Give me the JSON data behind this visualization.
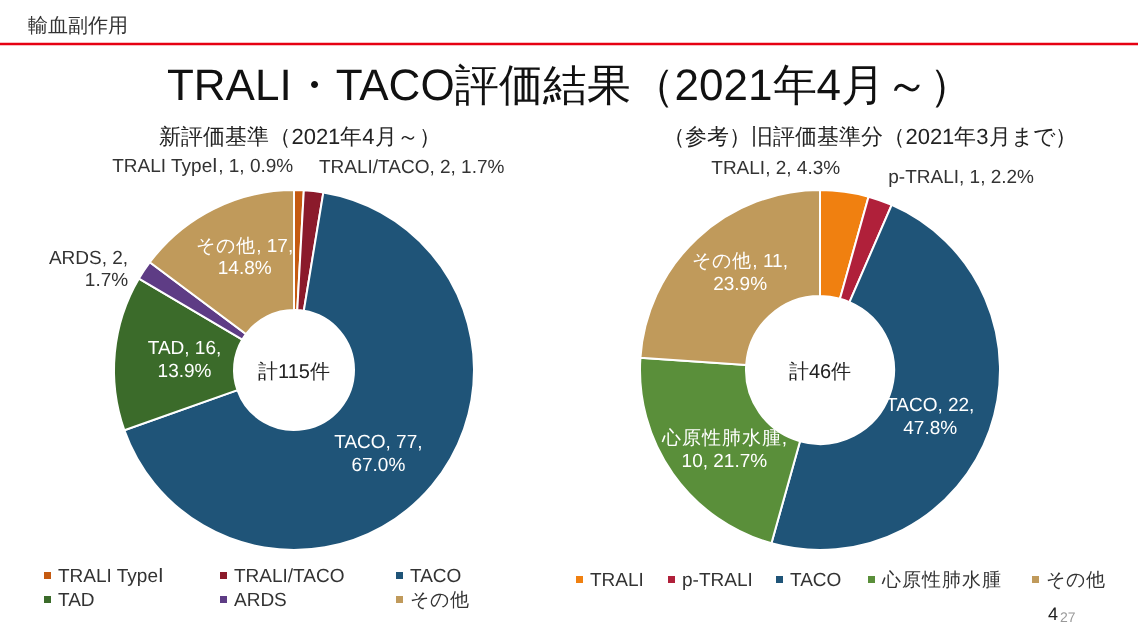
{
  "chart_data": [
    {
      "type": "donut",
      "title": "新評価基準（2021年4月～）",
      "categories": [
        "TRALI TypeⅠ",
        "TRALI/TACO",
        "TACO",
        "TAD",
        "ARDS",
        "その他"
      ],
      "values": [
        1,
        2,
        77,
        16,
        2,
        17
      ],
      "colors": [
        "#c55a11",
        "#8b1a2b",
        "#1f5478",
        "#3b6b2a",
        "#5e3c85",
        "#c09a5b"
      ],
      "value_labels": [
        "TRALI TypeⅠ, 1, 0.9%",
        "TRALI/TACO, 2, 1.7%",
        "TACO, 77, 67.0%",
        "TAD, 16, 13.9%",
        "ARDS, 2, 1.7%",
        "その他, 17, 14.8%"
      ],
      "legend": "bottom",
      "annotations": [
        "輸血副作用",
        "TRALI・TACO評価結果（2021年4月～）",
        "計115件"
      ]
    },
    {
      "type": "donut",
      "title": "（参考）旧評価基準分（2021年3月まで）",
      "categories": [
        "TRALI",
        "p-TRALI",
        "TACO",
        "心原性肺水腫",
        "その他"
      ],
      "values": [
        2,
        1,
        22,
        10,
        11
      ],
      "colors": [
        "#f08010",
        "#b0203a",
        "#1f5478",
        "#5a8f3a",
        "#c09a5b"
      ],
      "value_labels": [
        "TRALI, 2, 4.3%",
        "p-TRALI, 1, 2.2%",
        "TACO, 22, 47.8%",
        "心原性肺水腫, 10, 21.7%",
        "その他, 11, 23.9%"
      ],
      "legend": "bottom",
      "annotations": [
        "計46件",
        "4",
        "27"
      ]
    }
  ]
}
